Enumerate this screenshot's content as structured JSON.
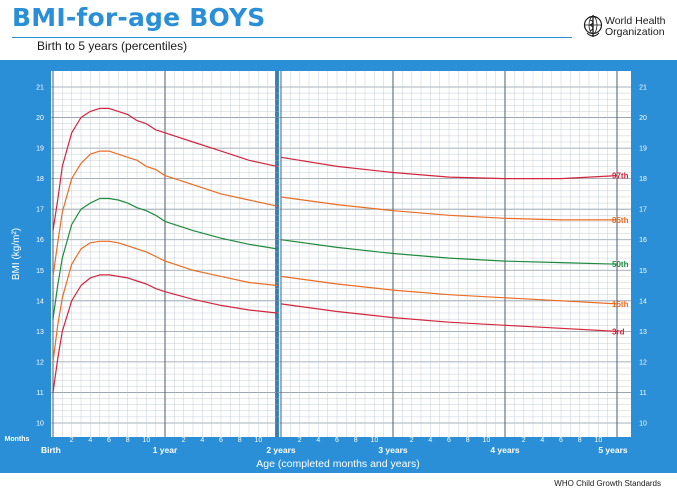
{
  "header": {
    "title": "BMI-for-age BOYS",
    "subtitle": "Birth to 5 years (percentiles)",
    "org_name_line1": "World Health",
    "org_name_line2": "Organization",
    "logo_icon": "who-emblem-icon"
  },
  "footer": {
    "source": "WHO Child Growth Standards"
  },
  "colors": {
    "panel": "#2a8fd6",
    "grid": "#b9c3cc",
    "grid_major": "#8e9aa6",
    "p97": "#d2263c",
    "p85": "#ec6c23",
    "p50": "#1f8a3c",
    "p15": "#ec6c23",
    "p3": "#d2263c"
  },
  "chart_data": {
    "type": "line",
    "title": "BMI-for-age BOYS",
    "subtitle": "Birth to 5 years (percentiles)",
    "xlabel": "Age (completed months and years)",
    "ylabel": "BMI (kg/m²)",
    "months_label": "Months",
    "x_unit": "months",
    "xlim": [
      0,
      60
    ],
    "ylim": [
      10,
      21
    ],
    "yticks": [
      10,
      11,
      12,
      13,
      14,
      15,
      16,
      17,
      18,
      19,
      20,
      21
    ],
    "month_ticks": [
      "2",
      "4",
      "6",
      "8",
      "10",
      "2",
      "4",
      "6",
      "8",
      "10",
      "2",
      "4",
      "6",
      "8",
      "10",
      "2",
      "4",
      "6",
      "8",
      "10",
      "2",
      "4",
      "6",
      "8",
      "10"
    ],
    "year_labels": [
      "Birth",
      "1 year",
      "2 years",
      "3 years",
      "4 years",
      "5 years"
    ],
    "grid": true,
    "series": [
      {
        "name": "97th",
        "key": "p97",
        "x": [
          0,
          0.5,
          1,
          2,
          3,
          4,
          5,
          6,
          7,
          8,
          9,
          10,
          11,
          12,
          15,
          18,
          21,
          24,
          24,
          30,
          36,
          42,
          48,
          54,
          60
        ],
        "y": [
          16.3,
          17.3,
          18.4,
          19.5,
          20.0,
          20.2,
          20.3,
          20.3,
          20.2,
          20.1,
          19.9,
          19.8,
          19.6,
          19.5,
          19.2,
          18.9,
          18.6,
          18.4,
          18.7,
          18.4,
          18.2,
          18.05,
          18.0,
          18.0,
          18.1
        ]
      },
      {
        "name": "85th",
        "key": "p85",
        "x": [
          0,
          0.5,
          1,
          2,
          3,
          4,
          5,
          6,
          7,
          8,
          9,
          10,
          11,
          12,
          15,
          18,
          21,
          24,
          24,
          30,
          36,
          42,
          48,
          54,
          60
        ],
        "y": [
          14.8,
          15.9,
          16.9,
          18.0,
          18.5,
          18.8,
          18.9,
          18.9,
          18.8,
          18.7,
          18.6,
          18.4,
          18.3,
          18.1,
          17.8,
          17.5,
          17.3,
          17.1,
          17.4,
          17.15,
          16.95,
          16.8,
          16.7,
          16.65,
          16.65
        ]
      },
      {
        "name": "50th",
        "key": "p50",
        "x": [
          0,
          0.5,
          1,
          2,
          3,
          4,
          5,
          6,
          7,
          8,
          9,
          10,
          11,
          12,
          15,
          18,
          21,
          24,
          24,
          30,
          36,
          42,
          48,
          54,
          60
        ],
        "y": [
          13.4,
          14.5,
          15.4,
          16.5,
          17.0,
          17.2,
          17.35,
          17.35,
          17.3,
          17.2,
          17.05,
          16.95,
          16.8,
          16.6,
          16.3,
          16.05,
          15.85,
          15.7,
          16.0,
          15.75,
          15.55,
          15.4,
          15.3,
          15.25,
          15.2
        ]
      },
      {
        "name": "15th",
        "key": "p15",
        "x": [
          0,
          0.5,
          1,
          2,
          3,
          4,
          5,
          6,
          7,
          8,
          9,
          10,
          11,
          12,
          15,
          18,
          21,
          24,
          24,
          30,
          36,
          42,
          48,
          54,
          60
        ],
        "y": [
          12.0,
          13.2,
          14.1,
          15.2,
          15.7,
          15.9,
          15.95,
          15.95,
          15.9,
          15.8,
          15.7,
          15.6,
          15.45,
          15.3,
          15.0,
          14.8,
          14.6,
          14.5,
          14.8,
          14.55,
          14.35,
          14.2,
          14.1,
          14.0,
          13.9
        ]
      },
      {
        "name": "3rd",
        "key": "p3",
        "x": [
          0,
          0.5,
          1,
          2,
          3,
          4,
          5,
          6,
          7,
          8,
          9,
          10,
          11,
          12,
          15,
          18,
          21,
          24,
          24,
          30,
          36,
          42,
          48,
          54,
          60
        ],
        "y": [
          11.0,
          12.1,
          13.0,
          14.0,
          14.5,
          14.75,
          14.85,
          14.85,
          14.8,
          14.75,
          14.65,
          14.55,
          14.4,
          14.3,
          14.05,
          13.85,
          13.7,
          13.6,
          13.9,
          13.65,
          13.45,
          13.3,
          13.2,
          13.1,
          13.0
        ]
      }
    ]
  }
}
